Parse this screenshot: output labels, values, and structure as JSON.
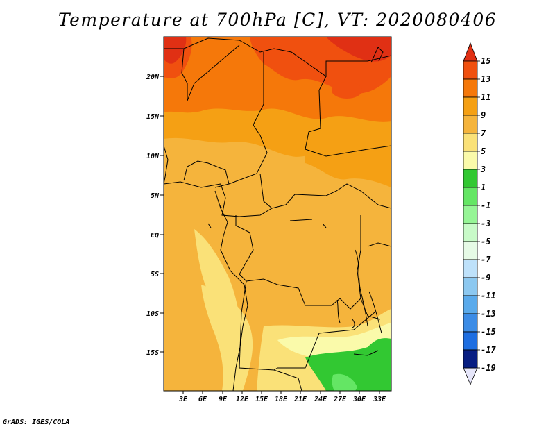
{
  "title": "Temperature at 700hPa [C], VT: 2020080406",
  "credit": "GrADS: IGES/COLA",
  "map": {
    "lat_labels": [
      "20N",
      "15N",
      "10N",
      "5N",
      "EQ",
      "5S",
      "10S",
      "15S"
    ],
    "lon_labels": [
      "3E",
      "6E",
      "9E",
      "12E",
      "15E",
      "18E",
      "21E",
      "24E",
      "27E",
      "30E",
      "33E"
    ]
  },
  "colorbar": {
    "labels": [
      "15",
      "13",
      "11",
      "9",
      "7",
      "5",
      "3",
      "1",
      "-1",
      "-3",
      "-5",
      "-7",
      "-9",
      "-11",
      "-13",
      "-15",
      "-17",
      "-19"
    ],
    "colors": [
      "#e03014",
      "#f0500f",
      "#f5780a",
      "#f5a014",
      "#f5b43c",
      "#fae178",
      "#fafaaa",
      "#32c832",
      "#64e664",
      "#96f596",
      "#c8fac8",
      "#e6fae6",
      "#bee1fa",
      "#8cc8f0",
      "#5aaaeb",
      "#3c8ce6",
      "#1e6ee1",
      "#0f50d2",
      "#0a32aa",
      "#081e82"
    ]
  }
}
